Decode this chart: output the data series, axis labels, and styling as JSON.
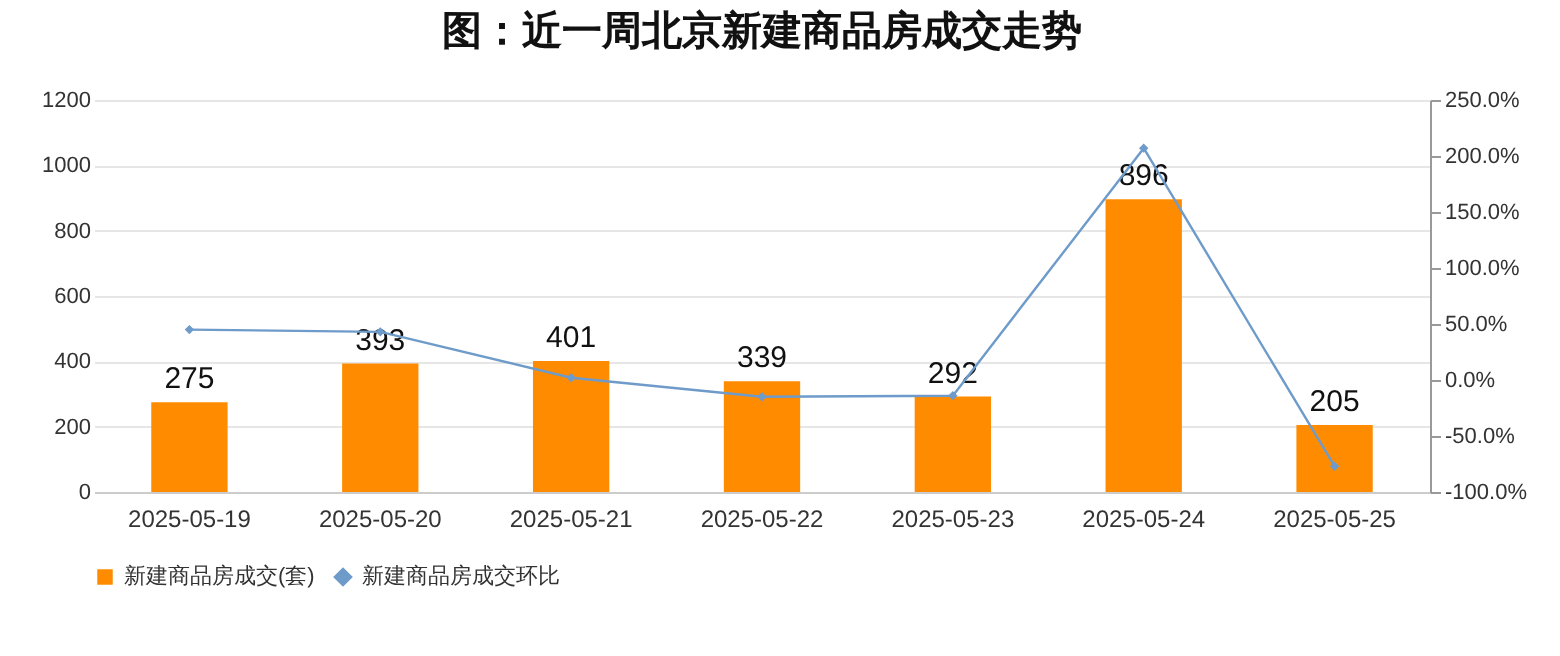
{
  "chart_data": {
    "type": "bar",
    "title": "图：近一周北京新建商品房成交走势",
    "categories": [
      "2025-05-19",
      "2025-05-20",
      "2025-05-21",
      "2025-05-22",
      "2025-05-23",
      "2025-05-24",
      "2025-05-25"
    ],
    "series": [
      {
        "name": "新建商品房成交(套)",
        "color": "#ff8c00",
        "values": [
          275,
          393,
          401,
          339,
          292,
          896,
          205
        ],
        "value_labels": [
          "275",
          "393",
          "401",
          "339",
          "292",
          "896",
          "205"
        ]
      },
      {
        "name": "新建商品房成交环比",
        "type": "line",
        "axis": "y2",
        "color": "#6e9bc9",
        "marker": "diamond",
        "values": [
          45,
          43,
          2,
          -15,
          -14,
          207,
          -77
        ]
      }
    ],
    "ylim": [
      0,
      1200
    ],
    "yticks": [
      0,
      200,
      400,
      600,
      800,
      1000,
      1200
    ],
    "y2lim": [
      -100,
      250
    ],
    "y2ticks": [
      {
        "value": -100,
        "label": "-100.0%"
      },
      {
        "value": -50,
        "label": "-50.0%"
      },
      {
        "value": 0,
        "label": "0.0%"
      },
      {
        "value": 50,
        "label": "50.0%"
      },
      {
        "value": 100,
        "label": "100.0%"
      },
      {
        "value": 150,
        "label": "150.0%"
      },
      {
        "value": 200,
        "label": "200.0%"
      },
      {
        "value": 250,
        "label": "250.0%"
      }
    ],
    "grid": "y",
    "legend": "bottom"
  }
}
